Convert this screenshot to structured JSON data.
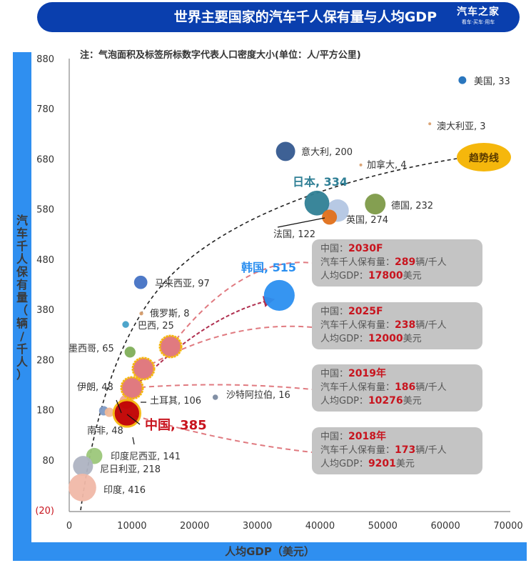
{
  "header": {
    "title": "世界主要国家的汽车千人保有量与人均GDP",
    "logo_main": "汽车之家",
    "logo_sub": "看车·买车·用车"
  },
  "note": "注：气泡面积及标签所标数字代表人口密度大小(单位：人/平方公里)",
  "colors": {
    "header_bg": "#0a3fae",
    "frame": "#2f8ff0",
    "highlight_red": "#c8141e",
    "trend_badge": "#f5b70c"
  },
  "chart_data": {
    "type": "bubble",
    "title": "世界主要国家的汽车千人保有量与人均GDP",
    "xlabel": "人均GDP（美元）",
    "ylabel": "汽车千人保有量（辆/千人）",
    "xlim": [
      0,
      70000
    ],
    "ylim": [
      -20,
      880
    ],
    "x_ticks": [
      "0",
      "10000",
      "20000",
      "30000",
      "40000",
      "50000",
      "60000",
      "70000"
    ],
    "y_ticks": [
      "880",
      "780",
      "680",
      "580",
      "480",
      "380",
      "280",
      "180",
      "80",
      "(20)"
    ],
    "size_unit": "人/平方公里",
    "points": [
      {
        "name": "美国",
        "label": "美国, 33",
        "x": 62700,
        "y": 837,
        "density": 33,
        "color": "#1f6fba"
      },
      {
        "name": "澳大利亚",
        "label": "澳大利亚, 3",
        "x": 57500,
        "y": 750,
        "density": 3,
        "color": "#d9a070"
      },
      {
        "name": "意大利",
        "label": "意大利, 200",
        "x": 34500,
        "y": 695,
        "density": 200,
        "color": "#34598f"
      },
      {
        "name": "加拿大",
        "label": "加拿大, 4",
        "x": 46500,
        "y": 668,
        "density": 4,
        "color": "#d9a070"
      },
      {
        "name": "英国",
        "label": "英国, 274",
        "x": 42800,
        "y": 577,
        "density": 274,
        "color": "#b3c6e3"
      },
      {
        "name": "日本",
        "label": "日本, 334",
        "x": 39500,
        "y": 592,
        "density": 334,
        "color": "#2f7f95"
      },
      {
        "name": "法国",
        "label": "法国, 122",
        "x": 41500,
        "y": 564,
        "density": 122,
        "color": "#e0701a"
      },
      {
        "name": "德国",
        "label": "德国, 232",
        "x": 48800,
        "y": 590,
        "density": 232,
        "color": "#7d9a48"
      },
      {
        "name": "韩国",
        "label": "韩国, 515",
        "x": 33500,
        "y": 408,
        "density": 515,
        "color": "#2b8ff0"
      },
      {
        "name": "马来西亚",
        "label": "马来西亚, 97",
        "x": 11400,
        "y": 434,
        "density": 97,
        "color": "#4472c4"
      },
      {
        "name": "俄罗斯",
        "label": "俄罗斯, 8",
        "x": 11500,
        "y": 372,
        "density": 8,
        "color": "#d9a070"
      },
      {
        "name": "巴西",
        "label": "巴西, 25",
        "x": 9000,
        "y": 350,
        "density": 25,
        "color": "#45a0c8"
      },
      {
        "name": "墨西哥",
        "label": "墨西哥, 65",
        "x": 9700,
        "y": 295,
        "density": 65,
        "color": "#7fae58"
      },
      {
        "name": "沙特阿拉伯",
        "label": "沙特阿拉伯, 16",
        "x": 23300,
        "y": 205,
        "density": 16,
        "color": "#7b8aa0"
      },
      {
        "name": "土耳其",
        "label": "土耳其, 106",
        "x": 9100,
        "y": 196,
        "density": 106,
        "color": "#f0a890"
      },
      {
        "name": "伊朗",
        "label": "伊朗, 48",
        "x": 5500,
        "y": 178,
        "density": 48,
        "color": "#7f9ac4"
      },
      {
        "name": "南非",
        "label": "南非, 48",
        "x": 6400,
        "y": 175,
        "density": 48,
        "color": "#f0b898"
      },
      {
        "name": "中国",
        "label": "中国, 385",
        "x": 9201,
        "y": 173,
        "density": 385,
        "color": "#c00000"
      },
      {
        "name": "印度尼西亚",
        "label": "印度尼西亚, 141",
        "x": 4000,
        "y": 88,
        "density": 141,
        "color": "#9cc77a"
      },
      {
        "name": "尼日利亚",
        "label": "尼日利亚, 218",
        "x": 2200,
        "y": 68,
        "density": 218,
        "color": "#aeb3c2"
      },
      {
        "name": "印度",
        "label": "印度, 416",
        "x": 2100,
        "y": 25,
        "density": 416,
        "color": "#f0b8a8"
      }
    ],
    "china_projection": [
      {
        "year": "2019年",
        "x": 10276,
        "y": 186
      },
      {
        "year": "2025F",
        "x": 12000,
        "y": 238
      },
      {
        "year": "2030F",
        "x": 17800,
        "y": 289
      }
    ],
    "trend_label": "趋势线"
  },
  "annotations": [
    {
      "country": "中国：",
      "year": "2030F",
      "own_label": "汽车千人保有量：",
      "own_value": "289",
      "own_unit": "辆/千人",
      "gdp_label": "人均GDP：",
      "gdp_value": "17800",
      "gdp_unit": "美元"
    },
    {
      "country": "中国：",
      "year": "2025F",
      "own_label": "汽车千人保有量：",
      "own_value": "238",
      "own_unit": "辆/千人",
      "gdp_label": "人均GDP：",
      "gdp_value": "12000",
      "gdp_unit": "美元"
    },
    {
      "country": "中国：",
      "year": "2019年",
      "own_label": "汽车千人保有量：",
      "own_value": "186",
      "own_unit": "辆/千人",
      "gdp_label": "人均GDP：",
      "gdp_value": "10276",
      "gdp_unit": "美元"
    },
    {
      "country": "中国：",
      "year": "2018年",
      "own_label": "汽车千人保有量：",
      "own_value": "173",
      "own_unit": "辆/千人",
      "gdp_label": "人均GDP：",
      "gdp_value": "9201",
      "gdp_unit": "美元"
    }
  ]
}
